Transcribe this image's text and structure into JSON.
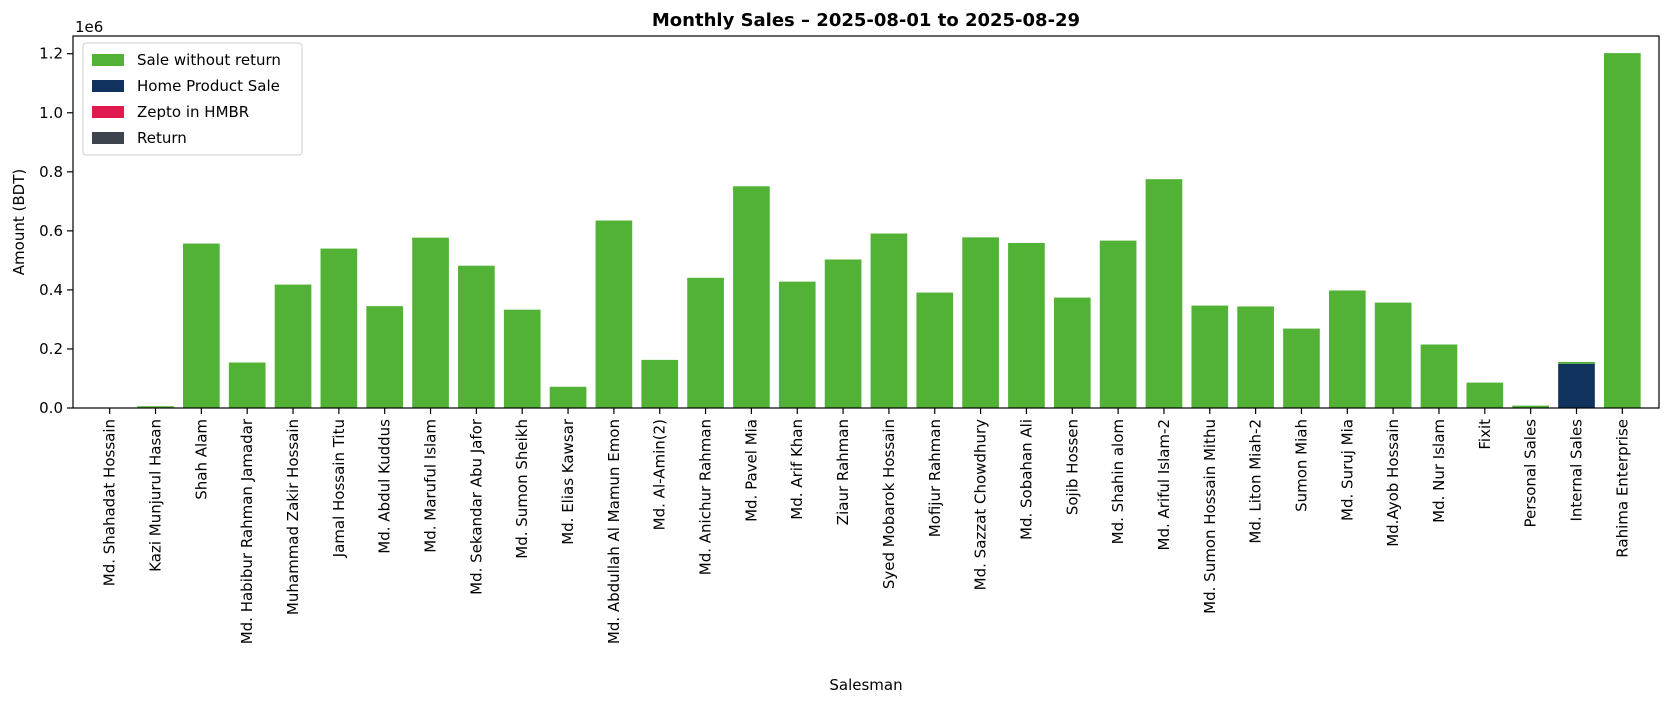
{
  "chart_data": {
    "type": "bar",
    "title": "Monthly Sales – 2025-08-01 to 2025-08-29",
    "xlabel": "Salesman",
    "ylabel": "Amount (BDT)",
    "y_offset_label": "1e6",
    "ylim": [
      0,
      1.26
    ],
    "yticks": [
      "0.0",
      "0.2",
      "0.4",
      "0.6",
      "0.8",
      "1.0",
      "1.2"
    ],
    "legend_position": "upper-left",
    "colors": {
      "sale_without_return": "#52b236",
      "home_product_sale": "#12325e",
      "zepto_in_hmbr": "#e0194f",
      "return": "#3e444e"
    },
    "categories": [
      "Md. Shahadat Hossain",
      "Kazi Munjurul Hasan",
      "Shah Alam",
      "Md. Habibur Rahman Jamadar",
      "Muhammad Zakir Hossain",
      "Jamal Hossain Titu",
      "Md. Abdul Kuddus",
      "Md. Maruful Islam",
      "Md. Sekandar Abu Jafor",
      "Md. Sumon Sheikh",
      "Md. Elias Kawsar",
      "Md. Abdullah Al Mamun Emon",
      "Md. Al-Amin(2)",
      "Md. Anichur  Rahman",
      "Md. Pavel Mia",
      "Md. Arif Khan",
      "Ziaur Rahman",
      "Syed Mobarok Hossain",
      "Mofijur Rahman",
      "Md. Sazzat Chowdhury",
      "Md. Sobahan Ali",
      "Sojib Hossen",
      "Md. Shahin alom",
      "Md. Ariful Islam-2",
      "Md. Sumon Hossain Mithu",
      "Md. Liton Miah-2",
      "Sumon Miah",
      "Md. Suruj Mia",
      "Md.Ayob Hossain",
      "Md. Nur Islam",
      "Fixit",
      "Personal Sales",
      "Internal Sales",
      "Rahima Enterprise"
    ],
    "series": [
      {
        "key": "home_product_sale",
        "name": "Home Product Sale",
        "values": [
          0,
          0,
          0,
          0,
          0,
          0,
          0,
          0,
          0,
          0,
          0,
          0,
          0,
          0,
          0,
          0,
          0,
          0,
          0,
          0,
          0,
          0,
          0,
          0,
          0,
          0,
          0,
          0,
          0,
          0,
          0,
          0,
          0.15,
          0
        ]
      },
      {
        "key": "sale_without_return",
        "name": "Sale without return",
        "values": [
          0.001,
          0.006,
          0.557,
          0.154,
          0.418,
          0.54,
          0.345,
          0.577,
          0.482,
          0.333,
          0.072,
          0.635,
          0.163,
          0.441,
          0.751,
          0.428,
          0.503,
          0.591,
          0.391,
          0.578,
          0.559,
          0.374,
          0.567,
          0.775,
          0.347,
          0.344,
          0.269,
          0.398,
          0.357,
          0.215,
          0.086,
          0.008,
          0.006,
          1.202
        ]
      },
      {
        "key": "zepto_in_hmbr",
        "name": "Zepto in HMBR",
        "values": [
          0,
          0,
          0,
          0,
          0,
          0,
          0,
          0,
          0,
          0,
          0,
          0,
          0,
          0,
          0,
          0,
          0,
          0,
          0,
          0,
          0,
          0,
          0,
          0,
          0,
          0,
          0,
          0,
          0,
          0,
          0,
          0,
          0,
          0
        ]
      },
      {
        "key": "return",
        "name": "Return",
        "values": [
          0,
          0,
          0,
          0,
          0,
          0,
          0,
          0,
          0,
          0,
          0,
          0,
          0,
          0,
          0,
          0,
          0,
          0,
          0,
          0,
          0,
          0,
          0,
          0,
          0,
          0,
          0,
          0,
          0,
          0,
          0,
          0,
          0,
          0
        ]
      }
    ],
    "legend": [
      {
        "key": "sale_without_return",
        "label": "Sale without return"
      },
      {
        "key": "home_product_sale",
        "label": "Home Product Sale"
      },
      {
        "key": "zepto_in_hmbr",
        "label": "Zepto in HMBR"
      },
      {
        "key": "return",
        "label": "Return"
      }
    ]
  }
}
